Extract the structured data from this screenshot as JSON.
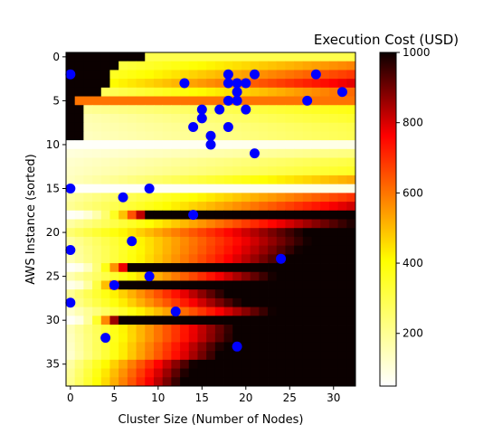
{
  "chart_data": {
    "type": "heatmap",
    "title": "",
    "xlabel": "Cluster Size (Number of Nodes)",
    "ylabel": "AWS Instance (sorted)",
    "x_ticks": [
      0,
      5,
      10,
      15,
      20,
      25,
      30
    ],
    "y_ticks": [
      0,
      5,
      10,
      15,
      20,
      25,
      30,
      35
    ],
    "xlim": [
      -0.5,
      32.5
    ],
    "ylim": [
      37.5,
      -0.5
    ],
    "n_rows": 38,
    "n_cols": 33,
    "grid": false,
    "colormap": "hot_r",
    "colorbar": {
      "label": "Execution Cost (USD)",
      "range": [
        50,
        1000
      ],
      "ticks": [
        200,
        400,
        600,
        800,
        1000
      ]
    },
    "heatmap_rows": [
      {
        "row": 0,
        "cutoff": 9,
        "base": 300,
        "slope": 0,
        "gamma": 1.0
      },
      {
        "row": 1,
        "cutoff": 6,
        "base": 320,
        "slope": 10,
        "gamma": 1.0
      },
      {
        "row": 2,
        "cutoff": 5,
        "base": 360,
        "slope": 12,
        "gamma": 1.0
      },
      {
        "row": 3,
        "cutoff": 5,
        "base": 410,
        "slope": 14,
        "gamma": 1.0
      },
      {
        "row": 4,
        "cutoff": 4,
        "base": 280,
        "slope": 12,
        "gamma": 1.0
      },
      {
        "row": 5,
        "cutoff": 1,
        "base": 600,
        "slope": 0,
        "gamma": 1.0
      },
      {
        "row": 6,
        "cutoff": 2,
        "base": 200,
        "slope": 6,
        "gamma": 1.0
      },
      {
        "row": 7,
        "cutoff": 2,
        "base": 160,
        "slope": 6,
        "gamma": 1.0
      },
      {
        "row": 8,
        "cutoff": 2,
        "base": 150,
        "slope": 5,
        "gamma": 1.0
      },
      {
        "row": 9,
        "cutoff": 2,
        "base": 140,
        "slope": 5,
        "gamma": 1.0
      },
      {
        "row": 10,
        "cutoff": 0,
        "base": 55,
        "slope": 1,
        "gamma": 1.0
      },
      {
        "row": 11,
        "cutoff": 0,
        "base": 100,
        "slope": 4,
        "gamma": 1.0
      },
      {
        "row": 12,
        "cutoff": 0,
        "base": 120,
        "slope": 6,
        "gamma": 1.0
      },
      {
        "row": 13,
        "cutoff": 0,
        "base": 130,
        "slope": 7,
        "gamma": 1.0
      },
      {
        "row": 14,
        "cutoff": 0,
        "base": 140,
        "slope": 12,
        "gamma": 1.0
      },
      {
        "row": 15,
        "cutoff": 0,
        "base": 55,
        "slope": 1,
        "gamma": 1.0
      },
      {
        "row": 16,
        "cutoff": 0,
        "base": 180,
        "slope": 16,
        "gamma": 1.0
      },
      {
        "row": 17,
        "cutoff": 0,
        "base": 200,
        "slope": 19,
        "gamma": 1.0
      },
      {
        "row": 18,
        "cutoff": 0,
        "base": 60,
        "slope": 12,
        "gamma": 2.0
      },
      {
        "row": 19,
        "cutoff": 0,
        "base": 180,
        "slope": 25,
        "gamma": 1.0
      },
      {
        "row": 20,
        "cutoff": 0,
        "base": 250,
        "slope": 28,
        "gamma": 1.0
      },
      {
        "row": 21,
        "cutoff": 0,
        "base": 180,
        "slope": 30,
        "gamma": 1.0
      },
      {
        "row": 22,
        "cutoff": 0,
        "base": 160,
        "slope": 32,
        "gamma": 1.0
      },
      {
        "row": 23,
        "cutoff": 0,
        "base": 150,
        "slope": 34,
        "gamma": 1.0
      },
      {
        "row": 24,
        "cutoff": 0,
        "base": 60,
        "slope": 20,
        "gamma": 2.0
      },
      {
        "row": 25,
        "cutoff": 0,
        "base": 160,
        "slope": 36,
        "gamma": 1.0
      },
      {
        "row": 26,
        "cutoff": 0,
        "base": 80,
        "slope": 26,
        "gamma": 2.0
      },
      {
        "row": 27,
        "cutoff": 0,
        "base": 200,
        "slope": 45,
        "gamma": 1.0
      },
      {
        "row": 28,
        "cutoff": 0,
        "base": 180,
        "slope": 42,
        "gamma": 1.0
      },
      {
        "row": 29,
        "cutoff": 0,
        "base": 120,
        "slope": 38,
        "gamma": 1.0
      },
      {
        "row": 30,
        "cutoff": 0,
        "base": 60,
        "slope": 32,
        "gamma": 2.0
      },
      {
        "row": 31,
        "cutoff": 0,
        "base": 150,
        "slope": 45,
        "gamma": 1.0
      },
      {
        "row": 32,
        "cutoff": 0,
        "base": 140,
        "slope": 46,
        "gamma": 1.0
      },
      {
        "row": 33,
        "cutoff": 0,
        "base": 130,
        "slope": 50,
        "gamma": 1.0
      },
      {
        "row": 34,
        "cutoff": 0,
        "base": 120,
        "slope": 52,
        "gamma": 1.0
      },
      {
        "row": 35,
        "cutoff": 0,
        "base": 180,
        "slope": 58,
        "gamma": 1.0
      },
      {
        "row": 36,
        "cutoff": 0,
        "base": 200,
        "slope": 60,
        "gamma": 1.0
      },
      {
        "row": 37,
        "cutoff": 0,
        "base": 210,
        "slope": 62,
        "gamma": 1.0
      }
    ],
    "heatmap_note": "cells left of cutoff are at the maximum cost; remaining cost = base + slope*(x-cutoff)^gamma, clipped to the colorbar range",
    "series": [
      {
        "marker": "circle",
        "color": "#0000ff",
        "points": [
          {
            "x": 0,
            "y": 2
          },
          {
            "x": 13,
            "y": 3
          },
          {
            "x": 18,
            "y": 2
          },
          {
            "x": 18,
            "y": 3
          },
          {
            "x": 19,
            "y": 3
          },
          {
            "x": 20,
            "y": 3
          },
          {
            "x": 21,
            "y": 2
          },
          {
            "x": 19,
            "y": 4
          },
          {
            "x": 28,
            "y": 2
          },
          {
            "x": 31,
            "y": 4
          },
          {
            "x": 27,
            "y": 5
          },
          {
            "x": 18,
            "y": 5
          },
          {
            "x": 19,
            "y": 5
          },
          {
            "x": 15,
            "y": 6
          },
          {
            "x": 17,
            "y": 6
          },
          {
            "x": 20,
            "y": 6
          },
          {
            "x": 15,
            "y": 7
          },
          {
            "x": 14,
            "y": 8
          },
          {
            "x": 18,
            "y": 8
          },
          {
            "x": 16,
            "y": 9
          },
          {
            "x": 16,
            "y": 10
          },
          {
            "x": 21,
            "y": 11
          },
          {
            "x": 0,
            "y": 15
          },
          {
            "x": 9,
            "y": 15
          },
          {
            "x": 6,
            "y": 16
          },
          {
            "x": 14,
            "y": 18
          },
          {
            "x": 7,
            "y": 21
          },
          {
            "x": 0,
            "y": 22
          },
          {
            "x": 24,
            "y": 23
          },
          {
            "x": 9,
            "y": 25
          },
          {
            "x": 5,
            "y": 26
          },
          {
            "x": 0,
            "y": 28
          },
          {
            "x": 12,
            "y": 29
          },
          {
            "x": 4,
            "y": 32
          },
          {
            "x": 19,
            "y": 33
          }
        ]
      }
    ]
  }
}
